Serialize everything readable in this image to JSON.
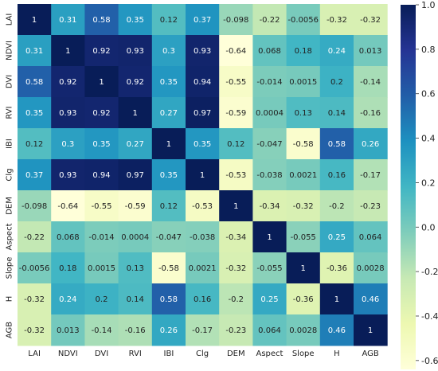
{
  "chart_data": {
    "type": "heatmap",
    "categories": [
      "LAI",
      "NDVI",
      "DVI",
      "RVI",
      "IBI",
      "Clg",
      "DEM",
      "Aspect",
      "Slope",
      "H",
      "AGB"
    ],
    "values": [
      [
        "1",
        "0.31",
        "0.58",
        "0.35",
        "0.12",
        "0.37",
        "-0.098",
        "-0.22",
        "-0.0056",
        "-0.32",
        "-0.32"
      ],
      [
        "0.31",
        "1",
        "0.92",
        "0.93",
        "0.3",
        "0.93",
        "-0.64",
        "0.068",
        "0.18",
        "0.24",
        "0.013"
      ],
      [
        "0.58",
        "0.92",
        "1",
        "0.92",
        "0.35",
        "0.94",
        "-0.55",
        "-0.014",
        "0.0015",
        "0.2",
        "-0.14"
      ],
      [
        "0.35",
        "0.93",
        "0.92",
        "1",
        "0.27",
        "0.97",
        "-0.59",
        "0.0004",
        "0.13",
        "0.14",
        "-0.16"
      ],
      [
        "0.12",
        "0.3",
        "0.35",
        "0.27",
        "1",
        "0.35",
        "0.12",
        "-0.047",
        "-0.58",
        "0.58",
        "0.26"
      ],
      [
        "0.37",
        "0.93",
        "0.94",
        "0.97",
        "0.35",
        "1",
        "-0.53",
        "-0.038",
        "0.0021",
        "0.16",
        "-0.17"
      ],
      [
        "-0.098",
        "-0.64",
        "-0.55",
        "-0.59",
        "0.12",
        "-0.53",
        "1",
        "-0.34",
        "-0.32",
        "-0.2",
        "-0.23"
      ],
      [
        "-0.22",
        "0.068",
        "-0.014",
        "0.0004",
        "-0.047",
        "-0.038",
        "-0.34",
        "1",
        "-0.055",
        "0.25",
        "0.064"
      ],
      [
        "-0.0056",
        "0.18",
        "0.0015",
        "0.13",
        "-0.58",
        "0.0021",
        "-0.32",
        "-0.055",
        "1",
        "-0.36",
        "0.0028"
      ],
      [
        "-0.32",
        "0.24",
        "0.2",
        "0.14",
        "0.58",
        "0.16",
        "-0.2",
        "0.25",
        "-0.36",
        "1",
        "0.46"
      ],
      [
        "-0.32",
        "0.013",
        "-0.14",
        "-0.16",
        "0.26",
        "-0.17",
        "-0.23",
        "0.064",
        "0.0028",
        "0.46",
        "1"
      ]
    ],
    "colorbar": {
      "min": -0.64,
      "max": 1.0,
      "ticks": [
        "1.0",
        "0.8",
        "0.6",
        "0.4",
        "0.2",
        "0.0",
        "-0.2",
        "-0.4",
        "-0.6"
      ],
      "tick_values": [
        1.0,
        0.8,
        0.6,
        0.4,
        0.2,
        0.0,
        -0.2,
        -0.4,
        -0.6
      ]
    },
    "colormap": "YlGnBu",
    "colormap_stops": [
      "#ffffd9",
      "#edf8b1",
      "#c7e9b4",
      "#7fcdbb",
      "#41b6c4",
      "#1d91c0",
      "#225ea8",
      "#253494",
      "#081d58"
    ],
    "title": "",
    "xlabel": "",
    "ylabel": "",
    "grid": false
  }
}
